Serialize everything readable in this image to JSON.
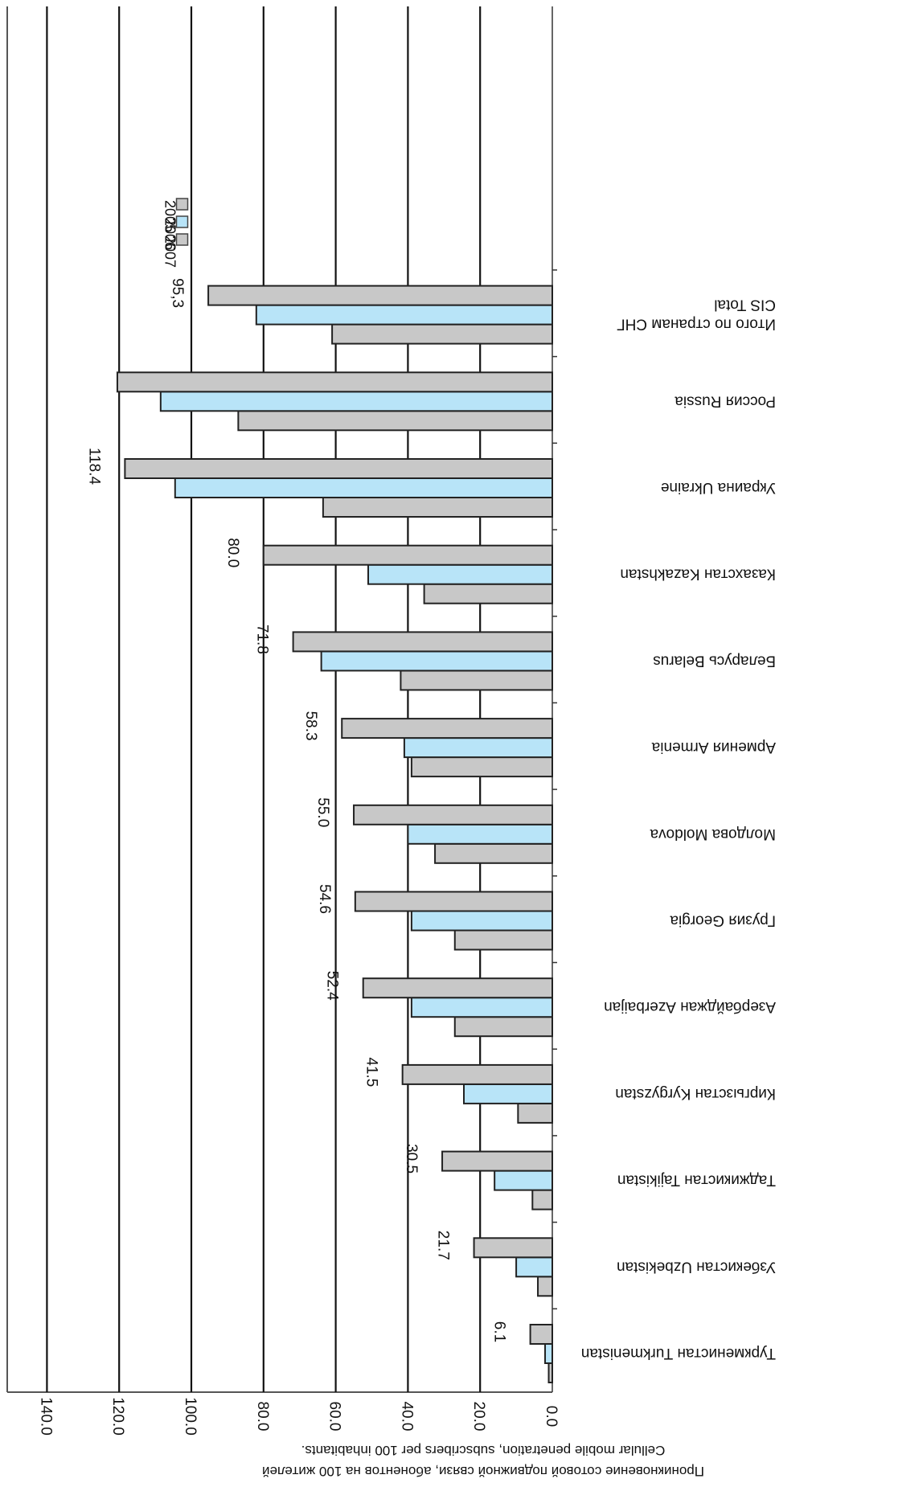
{
  "chart_data": {
    "type": "bar",
    "orientation": "horizontal",
    "rotated": "180deg",
    "categories": [
      "Туркменистан Turkmenistan",
      "Узбекистан Uzbekistan",
      "Таджикистан Tajikistan",
      "Киргызстан Kyrgyzstan",
      "Азербайджан Azerbaijan",
      "Грузия Georgia",
      "Молдова Moldova",
      "Армения Armenia",
      "Беларусь Belarus",
      "Казахстан Kazakhstan",
      "Украина Ukraine",
      "Россия Russia",
      "Итого по странам СНГ CIS Total"
    ],
    "series": [
      {
        "name": "2005",
        "values": [
          1.0,
          4.0,
          5.5,
          9.5,
          27.0,
          27.0,
          32.5,
          39.0,
          42.0,
          35.5,
          63.5,
          87.0,
          61.0
        ]
      },
      {
        "name": "2006",
        "values": [
          2.0,
          10.0,
          16.0,
          24.5,
          39.0,
          39.0,
          40.0,
          41.0,
          64.0,
          51.0,
          104.5,
          108.5,
          82.0
        ]
      },
      {
        "name": "2007",
        "values": [
          6.1,
          21.7,
          30.5,
          41.5,
          52.4,
          54.6,
          55.0,
          58.3,
          71.8,
          80.0,
          118.4,
          120.5,
          95.3
        ]
      }
    ],
    "data_labels": [
      "6.1",
      "21.7",
      "30.5",
      "41.5",
      "52.4",
      "54.6",
      "55.0",
      "58.3",
      "71.8",
      "80.0",
      "118.4",
      "",
      "95,3"
    ],
    "ticks": [
      "0.0",
      "20.0",
      "40.0",
      "60.0",
      "80.0",
      "100.0",
      "120.0",
      "140.0"
    ],
    "xlim": [
      0,
      140
    ],
    "xlabel_line1": "Проникновение сотовой подвижной связи, абонентов на 100 жителей",
    "xlabel_line2": "Cellular mobile penetration, subscribers per 100 inhabitants.",
    "legend_position": "top-left",
    "grid": true,
    "colors": {
      "2005": "#c8c8c8",
      "2006": "#b8e4f8",
      "2007": "#c8c8c8"
    }
  }
}
